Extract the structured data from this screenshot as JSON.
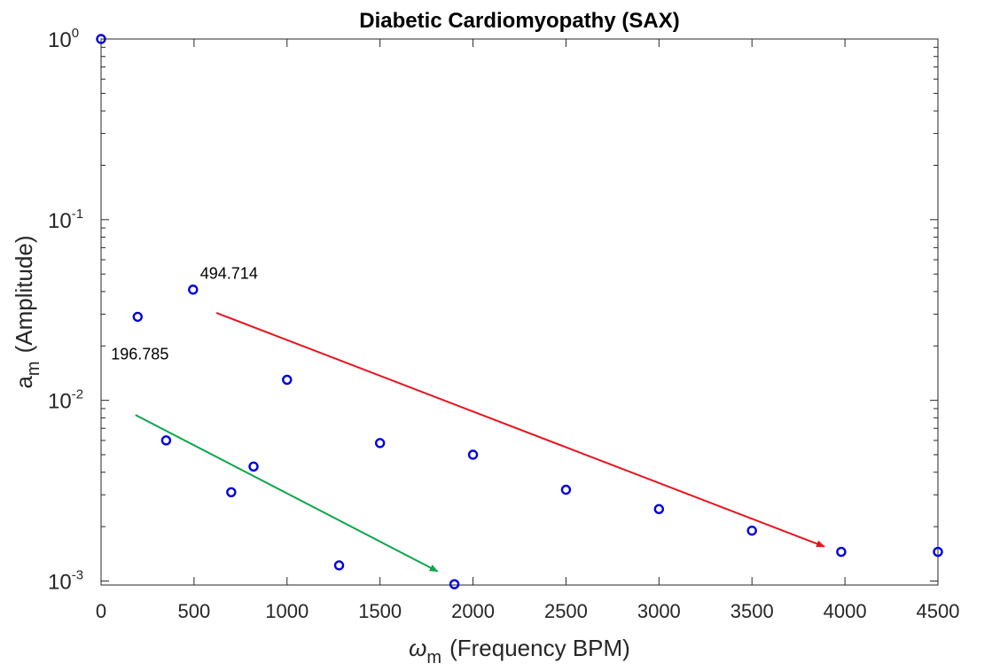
{
  "chart_data": {
    "type": "scatter",
    "title": "Diabetic Cardiomyopathy (SAX)",
    "xlabel": {
      "symbol": "ω",
      "sub": "m",
      "text": "(Frequency BPM)"
    },
    "ylabel": {
      "symbol": "a",
      "sub": "m",
      "text": "(Amplitude)"
    },
    "xlim": [
      0,
      4500
    ],
    "ylim": [
      0.00095,
      1.0
    ],
    "yscale": "log",
    "xticks": [
      0,
      500,
      1000,
      1500,
      2000,
      2500,
      3000,
      3500,
      4000,
      4500
    ],
    "yticks": [
      {
        "value": 1.0,
        "base": "10",
        "exp": "0"
      },
      {
        "value": 0.1,
        "base": "10",
        "exp": "-1"
      },
      {
        "value": 0.01,
        "base": "10",
        "exp": "-2"
      },
      {
        "value": 0.001,
        "base": "10",
        "exp": "-3"
      }
    ],
    "grid": false,
    "marker_color": "#0000e0",
    "series": [
      {
        "name": "amplitude",
        "x": [
          0,
          196.785,
          350,
          494.714,
          700,
          820,
          1000,
          1280,
          1500,
          1900,
          2000,
          2500,
          3000,
          3500,
          3980,
          4500
        ],
        "y": [
          1.0,
          0.029,
          0.006,
          0.041,
          0.0031,
          0.0043,
          0.013,
          0.00122,
          0.0058,
          0.00096,
          0.005,
          0.0032,
          0.0025,
          0.0019,
          0.00145,
          0.00145
        ]
      }
    ],
    "annotations": [
      {
        "text": "494.714",
        "x": 494.714,
        "y": 0.041
      },
      {
        "text": "196.785",
        "x": 196.785,
        "y": 0.029
      }
    ],
    "arrows": [
      {
        "color": "#e8141d",
        "from": [
          620,
          0.0305
        ],
        "to": [
          3890,
          0.00155
        ]
      },
      {
        "color": "#0ca64a",
        "from": [
          185,
          0.0083
        ],
        "to": [
          1810,
          0.00113
        ]
      }
    ]
  }
}
